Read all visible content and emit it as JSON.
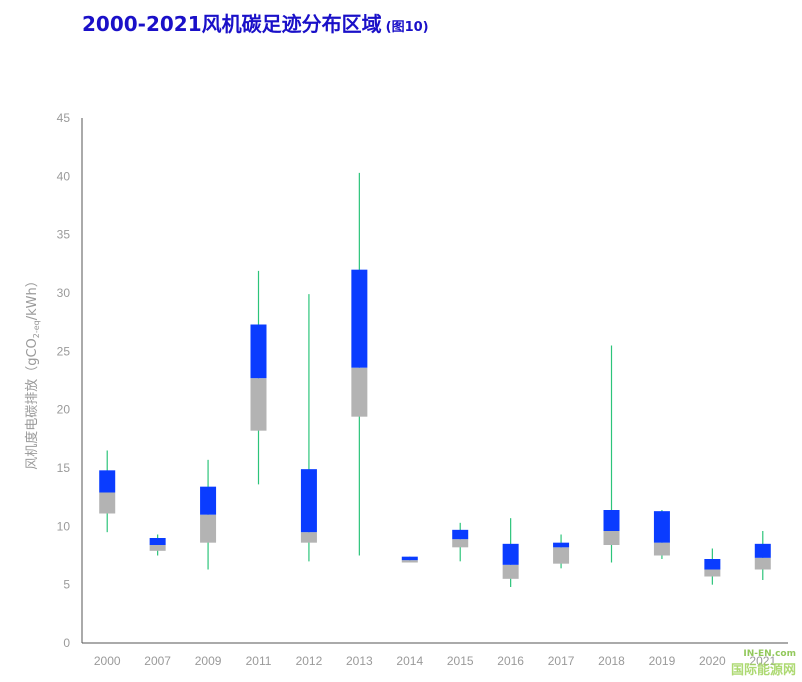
{
  "title": "2000-2021风机碳足迹分布区域",
  "title_note": "(图10)",
  "watermark": {
    "top": "IN-EN.com",
    "text": "国际能源网"
  },
  "colors": {
    "upper_box": "#0a3cff",
    "lower_box": "#b3b3b3",
    "whisker": "#2cc47a",
    "axis": "#555555"
  },
  "chart_data": {
    "type": "box",
    "title": "2000-2021风机碳足迹分布区域",
    "ylabel_main": "风机度电碳排放（gCO",
    "ylabel_sub": "2-eq",
    "ylabel_tail": "/kWh）",
    "ylim": [
      0,
      45
    ],
    "yticks": [
      0,
      5,
      10,
      15,
      20,
      25,
      30,
      35,
      40,
      45
    ],
    "grid": false,
    "categories": [
      "2000",
      "2007",
      "2009",
      "2011",
      "2012",
      "2013",
      "2014",
      "2015",
      "2016",
      "2017",
      "2018",
      "2019",
      "2020",
      "2021"
    ],
    "series": [
      {
        "year": "2000",
        "min": 9.5,
        "q1": 11.1,
        "median": 12.9,
        "q3": 14.8,
        "max": 16.5
      },
      {
        "year": "2007",
        "min": 7.5,
        "q1": 7.9,
        "median": 8.4,
        "q3": 9.0,
        "max": 9.3
      },
      {
        "year": "2009",
        "min": 6.3,
        "q1": 8.6,
        "median": 11.0,
        "q3": 13.4,
        "max": 15.7
      },
      {
        "year": "2011",
        "min": 13.6,
        "q1": 18.2,
        "median": 22.7,
        "q3": 27.3,
        "max": 31.9
      },
      {
        "year": "2012",
        "min": 7.0,
        "q1": 8.6,
        "median": 9.5,
        "q3": 14.9,
        "max": 29.9
      },
      {
        "year": "2013",
        "min": 7.5,
        "q1": 19.4,
        "median": 23.6,
        "q3": 32.0,
        "max": 40.3
      },
      {
        "year": "2014",
        "min": 6.9,
        "q1": 6.9,
        "median": 7.1,
        "q3": 7.4,
        "max": 7.4
      },
      {
        "year": "2015",
        "min": 7.0,
        "q1": 8.2,
        "median": 8.9,
        "q3": 9.7,
        "max": 10.3
      },
      {
        "year": "2016",
        "min": 4.8,
        "q1": 5.5,
        "median": 6.7,
        "q3": 8.5,
        "max": 10.7
      },
      {
        "year": "2017",
        "min": 6.4,
        "q1": 6.8,
        "median": 8.2,
        "q3": 8.6,
        "max": 9.3
      },
      {
        "year": "2018",
        "min": 6.9,
        "q1": 8.4,
        "median": 9.6,
        "q3": 11.4,
        "max": 25.5
      },
      {
        "year": "2019",
        "min": 7.2,
        "q1": 7.5,
        "median": 8.6,
        "q3": 11.3,
        "max": 11.4
      },
      {
        "year": "2020",
        "min": 5.0,
        "q1": 5.7,
        "median": 6.3,
        "q3": 7.2,
        "max": 8.1
      },
      {
        "year": "2021",
        "min": 5.4,
        "q1": 6.3,
        "median": 7.3,
        "q3": 8.5,
        "max": 9.6
      }
    ]
  }
}
